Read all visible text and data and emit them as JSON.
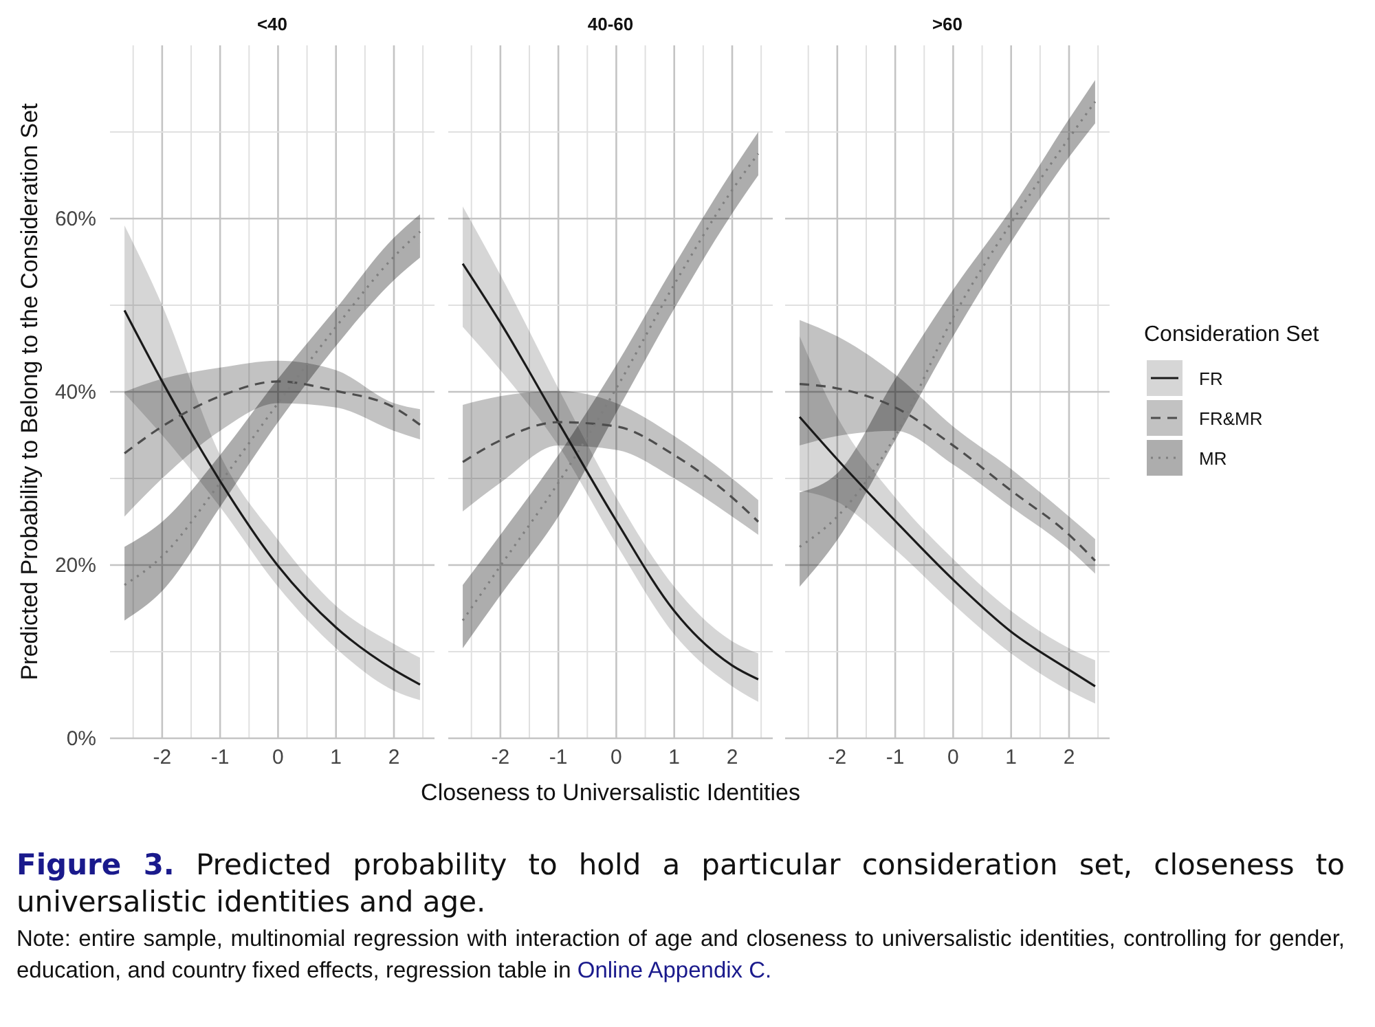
{
  "chart_data": [
    {
      "type": "line",
      "title": "<40",
      "ylabel": "Predicted Probability to Belong to the Consideration Set",
      "xlim": [
        -2.9,
        2.7
      ],
      "xticks": [
        -2,
        -1,
        0,
        1,
        2
      ],
      "ylim": [
        0,
        80
      ],
      "yticks": [
        {
          "value": 0,
          "label": "0%"
        },
        {
          "value": 20,
          "label": "20%"
        },
        {
          "value": 40,
          "label": "40%"
        },
        {
          "value": 60,
          "label": "60%"
        }
      ],
      "grid": true,
      "annotations": [
        "Figure 3.",
        "Predicted probability to hold a particular consideration set, closeness to universalistic identities and age.",
        "Note: entire sample, multinomial regression with interaction of age and closeness to universalistic identities, controlling for gender, education, and country fixed effects, regression table in",
        "Online Appendix C."
      ],
      "series": [
        {
          "color": "#1a1a1a",
          "line_style": "solid",
          "x": [
            -2.65,
            -2,
            -1,
            0,
            1,
            2,
            2.45
          ],
          "values": [
            49.4,
            41.2,
            29.7,
            19.9,
            12.8,
            7.9,
            6.2
          ],
          "lower": [
            39.8,
            35,
            26.7,
            17.5,
            10.4,
            5.5,
            4.4
          ],
          "upper": [
            59.2,
            50,
            32.7,
            22.9,
            15.3,
            10.9,
            9.3
          ]
        },
        {
          "color": "#4d4d4d",
          "line_style": "dashed",
          "x": [
            -2.65,
            -2,
            -1,
            0,
            1,
            2,
            2.45
          ],
          "values": [
            32.9,
            36,
            39.5,
            41.2,
            40.1,
            38.2,
            36.2
          ],
          "lower": [
            25.6,
            30,
            35.5,
            38.7,
            38.2,
            35.5,
            34.5
          ],
          "upper": [
            40,
            41.5,
            42.8,
            43.6,
            42.5,
            38.7,
            38
          ]
        },
        {
          "color": "#7f7f7f",
          "line_style": "dotted",
          "x": [
            -2.65,
            -2,
            -1,
            0,
            1,
            2,
            2.45
          ],
          "values": [
            17.7,
            21,
            29.5,
            38.7,
            47.5,
            55.6,
            58.5
          ],
          "lower": [
            13.6,
            17,
            26.7,
            36.5,
            45.3,
            52.9,
            55.5
          ],
          "upper": [
            22.1,
            25,
            32.7,
            41.5,
            49.6,
            57.8,
            60.5
          ]
        }
      ]
    },
    {
      "type": "line",
      "title": "40-60",
      "xlabel": "Closeness to Universalistic Identities",
      "xlim": [
        -2.9,
        2.7
      ],
      "xticks": [
        -2,
        -1,
        0,
        1,
        2
      ],
      "ylim": [
        0,
        80
      ],
      "yticks": [
        0,
        20,
        40,
        60
      ],
      "grid": true,
      "tick_labels": "x",
      "series": [
        {
          "color": "#1a1a1a",
          "line_style": "solid",
          "x": [
            -2.65,
            -2,
            -1,
            0,
            1,
            2,
            2.45
          ],
          "values": [
            54.8,
            48,
            36.5,
            25.1,
            14.7,
            8.4,
            6.8
          ],
          "lower": [
            47.5,
            42.5,
            33.8,
            22.4,
            12,
            6,
            4.2
          ],
          "upper": [
            61.4,
            53.5,
            40.4,
            27.8,
            17.5,
            11.2,
            9.8
          ]
        },
        {
          "color": "#4d4d4d",
          "line_style": "dashed",
          "x": [
            -2.65,
            -2,
            -1,
            0,
            1,
            2,
            2.45
          ],
          "values": [
            31.9,
            34.4,
            36.5,
            36,
            32.7,
            27.8,
            25
          ],
          "lower": [
            26.2,
            29.5,
            33.8,
            33.3,
            30,
            25.6,
            23.5
          ],
          "upper": [
            38.5,
            39.5,
            40.1,
            38.7,
            34.9,
            30,
            27.5
          ]
        },
        {
          "color": "#7f7f7f",
          "line_style": "dotted",
          "x": [
            -2.65,
            -2,
            -1,
            0,
            1,
            2,
            2.45
          ],
          "values": [
            13.6,
            19.9,
            29.5,
            40.4,
            52.4,
            63.3,
            67.5
          ],
          "lower": [
            10.4,
            16.5,
            25.6,
            37.6,
            49.6,
            60.6,
            65
          ],
          "upper": [
            17.7,
            23.5,
            32.7,
            43.1,
            54.6,
            65.5,
            70
          ]
        }
      ]
    },
    {
      "type": "line",
      "title": ">60",
      "xlim": [
        -2.9,
        2.7
      ],
      "xticks": [
        -2,
        -1,
        0,
        1,
        2
      ],
      "ylim": [
        0,
        80
      ],
      "yticks": [
        0,
        20,
        40,
        60
      ],
      "grid": true,
      "tick_labels": "x",
      "legend": "right",
      "legend_title": "Consideration Set",
      "series": [
        {
          "name": "FR",
          "color": "#1a1a1a",
          "line_style": "solid",
          "x": [
            -2.65,
            -2,
            -1,
            0,
            1,
            2,
            2.45
          ],
          "values": [
            37.1,
            32.2,
            25.1,
            18.3,
            12.3,
            7.9,
            6
          ],
          "lower": [
            28.6,
            27.3,
            21.8,
            15.5,
            9.8,
            5.5,
            4
          ],
          "upper": [
            46.4,
            37.1,
            27.8,
            20.7,
            14.7,
            10.4,
            9
          ]
        },
        {
          "name": "FR&MR",
          "color": "#4d4d4d",
          "line_style": "dashed",
          "x": [
            -2.65,
            -2,
            -1,
            0,
            1,
            2,
            2.45
          ],
          "values": [
            40.9,
            40.4,
            38.2,
            33.8,
            28.6,
            23.5,
            20.5
          ],
          "lower": [
            33.8,
            34.9,
            35.5,
            31.6,
            26.7,
            21.8,
            19
          ],
          "upper": [
            48.3,
            46.4,
            42,
            36,
            31.1,
            25.6,
            23
          ]
        },
        {
          "name": "MR",
          "color": "#7f7f7f",
          "line_style": "dotted",
          "x": [
            -2.65,
            -2,
            -1,
            0,
            1,
            2,
            2.45
          ],
          "values": [
            22.1,
            25.6,
            34.9,
            48.6,
            59.5,
            69.3,
            73.5
          ],
          "lower": [
            17.5,
            22.9,
            34.4,
            46.4,
            57.3,
            67.1,
            71
          ],
          "upper": [
            28.4,
            30.6,
            41.5,
            51.8,
            61.1,
            71.5,
            76
          ]
        }
      ]
    }
  ]
}
